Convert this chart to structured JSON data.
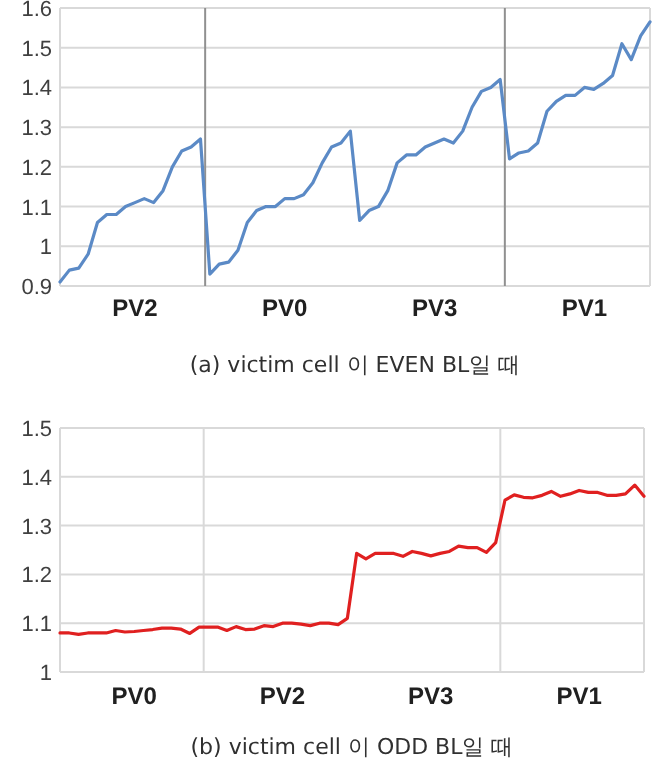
{
  "chart_data": [
    {
      "type": "line",
      "title": "(a) victim cell 이 EVEN BL일 때",
      "categories": [
        null,
        null,
        null,
        null,
        null,
        null,
        null,
        null,
        "PV2",
        null,
        null,
        null,
        null,
        null,
        null,
        null,
        null,
        null,
        null,
        null,
        null,
        null,
        null,
        null,
        "PV0",
        null,
        null,
        null,
        null,
        null,
        null,
        null,
        null,
        null,
        null,
        null,
        null,
        null,
        null,
        null,
        "PV3",
        null,
        null,
        null,
        null,
        null,
        null,
        null,
        null,
        null,
        null,
        null,
        null,
        null,
        null,
        null,
        "PV1",
        null,
        null,
        null,
        null,
        null,
        null,
        null
      ],
      "series": [
        {
          "color": "#5b8ac6",
          "values": [
            0.91,
            0.94,
            0.945,
            0.98,
            1.06,
            1.08,
            1.08,
            1.1,
            1.11,
            1.12,
            1.11,
            1.14,
            1.2,
            1.24,
            1.25,
            1.27,
            0.93,
            0.955,
            0.96,
            0.99,
            1.06,
            1.09,
            1.1,
            1.1,
            1.12,
            1.12,
            1.13,
            1.16,
            1.21,
            1.25,
            1.26,
            1.29,
            1.065,
            1.09,
            1.1,
            1.14,
            1.21,
            1.23,
            1.23,
            1.25,
            1.26,
            1.27,
            1.26,
            1.29,
            1.35,
            1.39,
            1.4,
            1.42,
            1.22,
            1.235,
            1.24,
            1.26,
            1.34,
            1.365,
            1.38,
            1.38,
            1.4,
            1.395,
            1.41,
            1.43,
            1.51,
            1.47,
            1.53,
            1.565
          ]
        }
      ],
      "ylim": [
        0.9,
        1.6
      ],
      "yticks": [
        0.9,
        1,
        1.1,
        1.2,
        1.3,
        1.4,
        1.5,
        1.6
      ],
      "grid": "y"
    },
    {
      "type": "line",
      "title": "(b) victim cell 이 ODD BL일 때",
      "categories": [
        null,
        null,
        null,
        null,
        null,
        null,
        null,
        null,
        "PV0",
        null,
        null,
        null,
        null,
        null,
        null,
        null,
        null,
        null,
        null,
        null,
        null,
        null,
        null,
        null,
        "PV2",
        null,
        null,
        null,
        null,
        null,
        null,
        null,
        null,
        null,
        null,
        null,
        null,
        null,
        null,
        null,
        "PV3",
        null,
        null,
        null,
        null,
        null,
        null,
        null,
        null,
        null,
        null,
        null,
        null,
        null,
        null,
        null,
        "PV1",
        null,
        null,
        null,
        null,
        null,
        null,
        null
      ],
      "series": [
        {
          "color": "#e02020",
          "values": [
            1.08,
            1.08,
            1.077,
            1.08,
            1.08,
            1.08,
            1.085,
            1.082,
            1.083,
            1.085,
            1.087,
            1.09,
            1.09,
            1.088,
            1.079,
            1.092,
            1.092,
            1.092,
            1.085,
            1.093,
            1.087,
            1.088,
            1.095,
            1.093,
            1.1,
            1.1,
            1.098,
            1.095,
            1.1,
            1.1,
            1.097,
            1.11,
            1.243,
            1.232,
            1.243,
            1.243,
            1.243,
            1.237,
            1.247,
            1.243,
            1.238,
            1.243,
            1.247,
            1.258,
            1.255,
            1.255,
            1.245,
            1.265,
            1.352,
            1.363,
            1.358,
            1.357,
            1.362,
            1.37,
            1.36,
            1.365,
            1.372,
            1.368,
            1.368,
            1.362,
            1.362,
            1.365,
            1.383,
            1.36
          ]
        }
      ],
      "ylim": [
        1,
        1.5
      ],
      "yticks": [
        1,
        1.1,
        1.2,
        1.3,
        1.4,
        1.5
      ],
      "grid": "y"
    }
  ]
}
